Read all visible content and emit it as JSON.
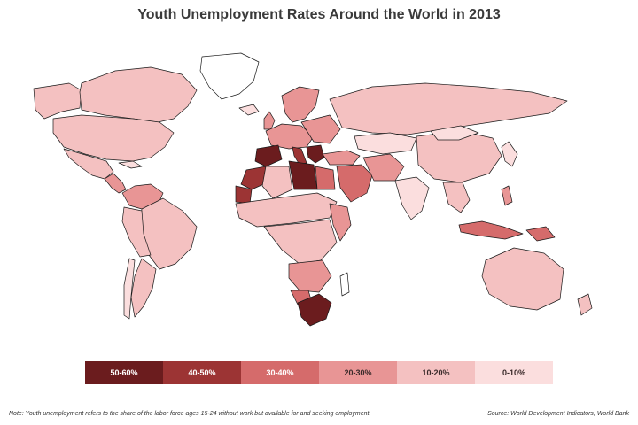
{
  "title": "Youth Unemployment Rates Around the World in 2013",
  "legend": {
    "items": [
      {
        "label": "50-60%",
        "color": "#6b1c1e",
        "text_color": "#ffffff"
      },
      {
        "label": "40-50%",
        "color": "#9c3434",
        "text_color": "#ffffff"
      },
      {
        "label": "30-40%",
        "color": "#d56b6b",
        "text_color": "#ffffff"
      },
      {
        "label": "20-30%",
        "color": "#e89595",
        "text_color": "#3a2a2a"
      },
      {
        "label": "10-20%",
        "color": "#f4c1c1",
        "text_color": "#3a2a2a"
      },
      {
        "label": "0-10%",
        "color": "#fbdede",
        "text_color": "#3a2a2a"
      }
    ]
  },
  "note": "Note: Youth unemployment refers to the share of the labor force ages 15-24 without work but available for and seeking employment.",
  "source": "Source: World Development Indicators, World Bank"
}
